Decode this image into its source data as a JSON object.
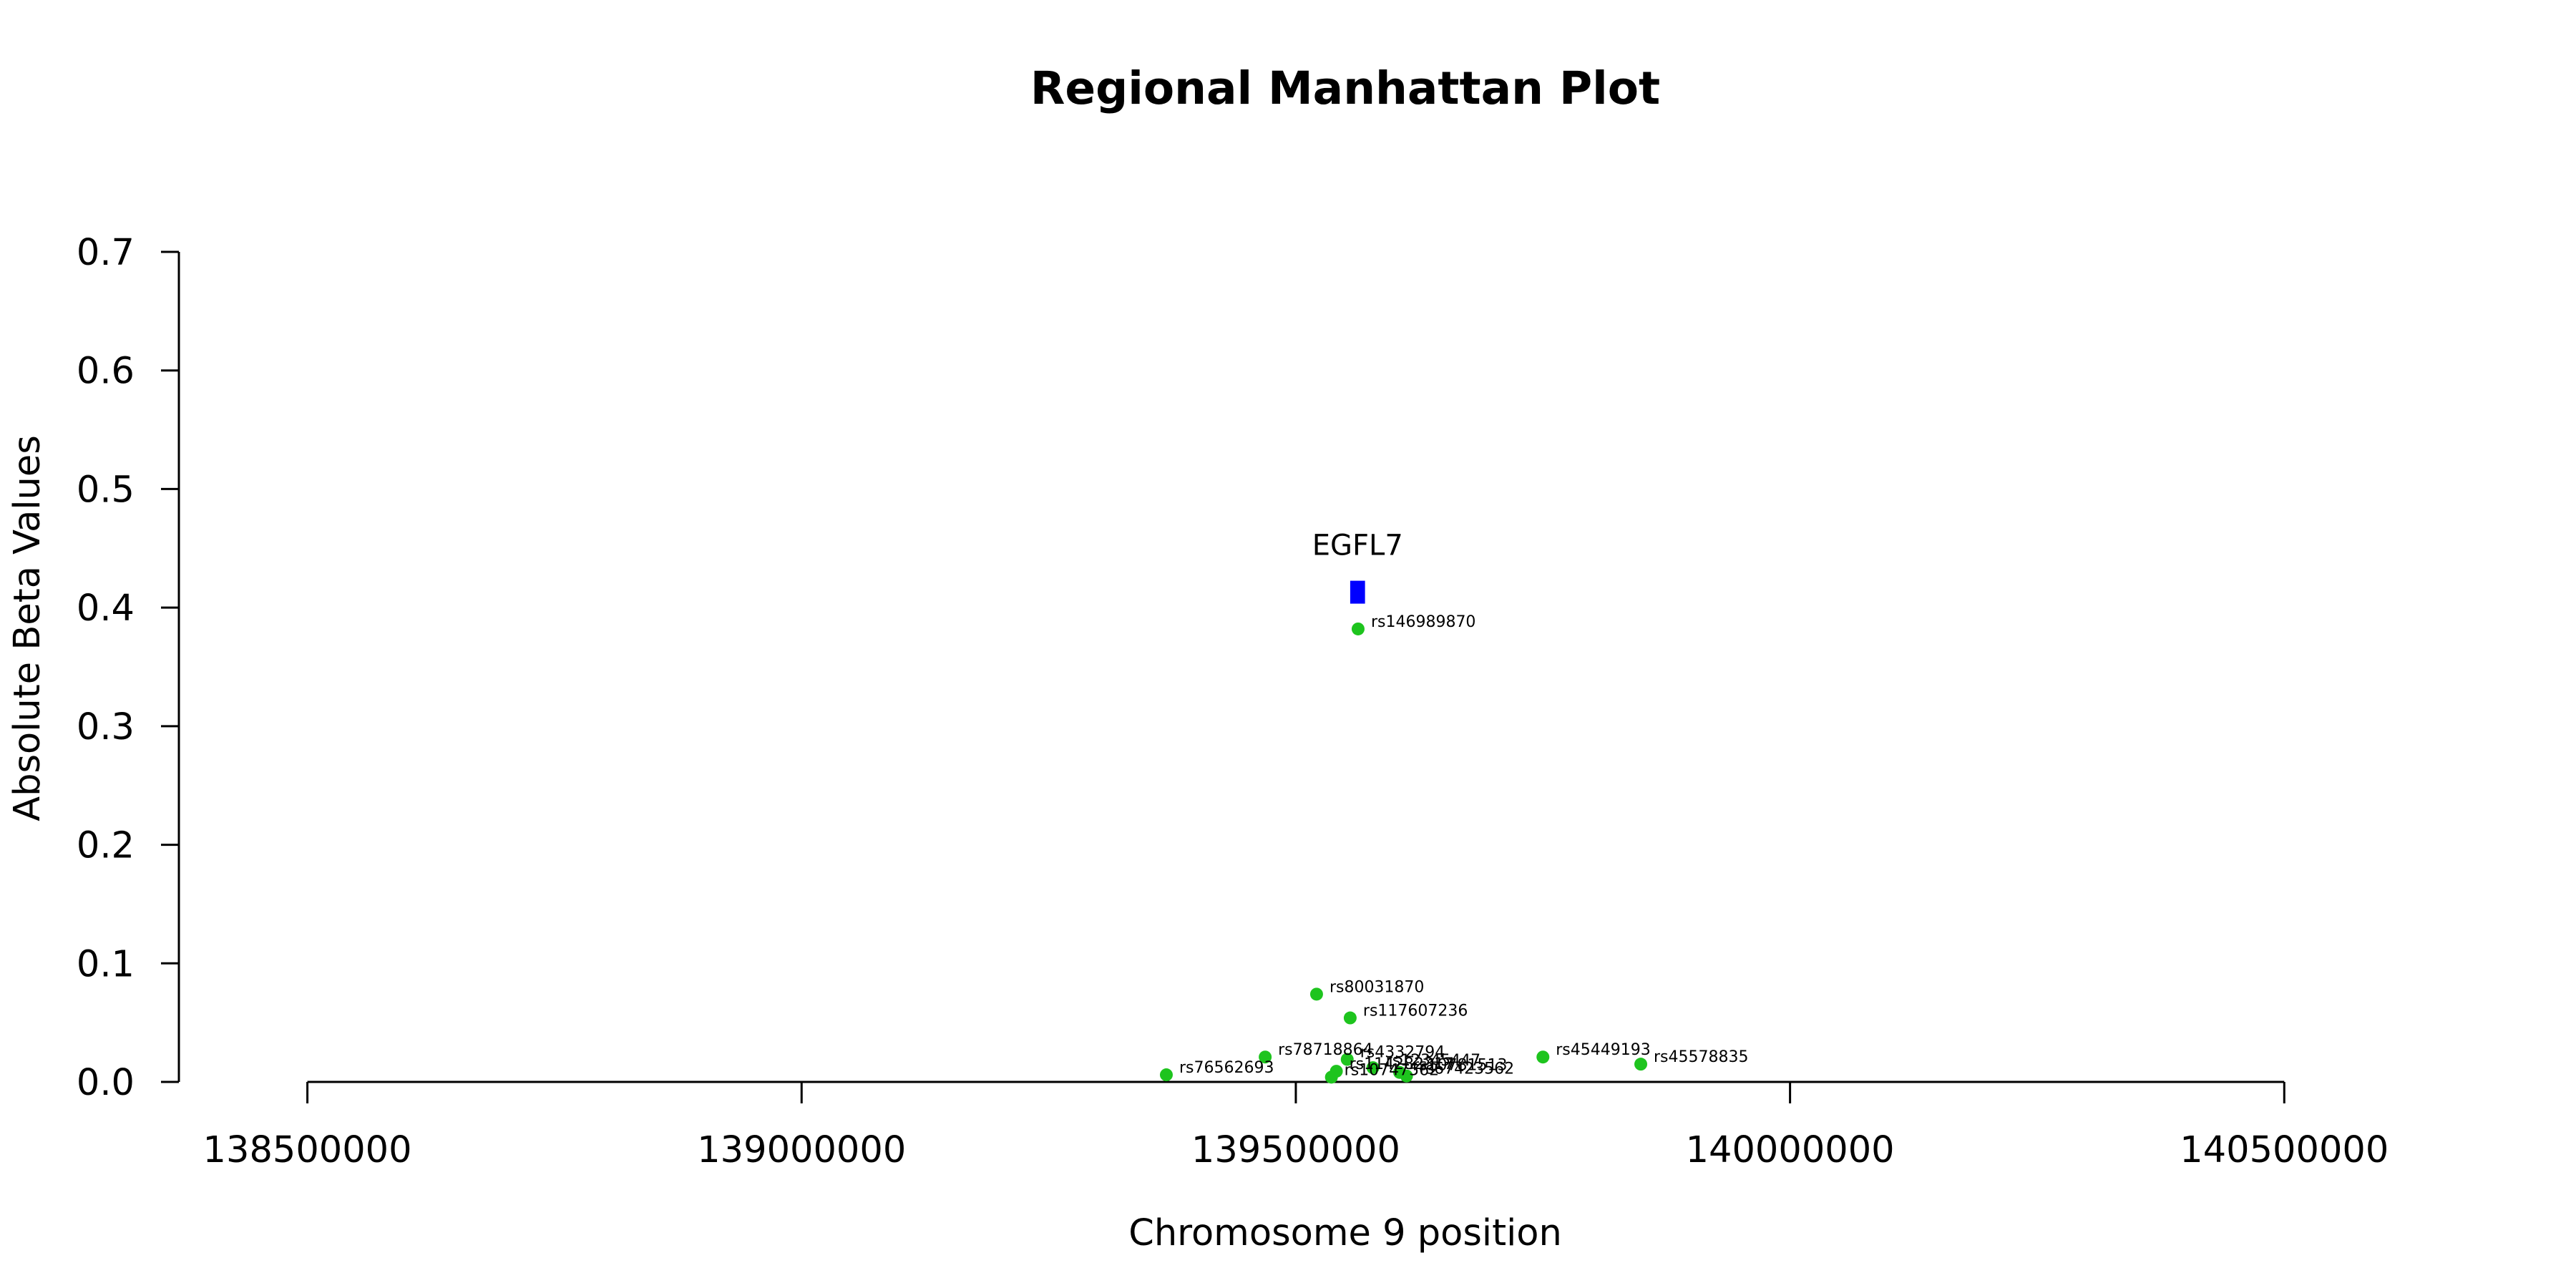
{
  "chart_data": {
    "type": "scatter",
    "title": "Regional Manhattan Plot",
    "xlabel": "Chromosome 9 position",
    "ylabel": "Absolute Beta Values",
    "xlim": [
      138370000,
      140730000
    ],
    "ylim": [
      0,
      0.7
    ],
    "x_ticks": [
      138500000,
      139000000,
      139500000,
      140000000,
      140500000
    ],
    "x_tick_labels": [
      "138500000",
      "139000000",
      "139500000",
      "140000000",
      "140500000"
    ],
    "y_ticks": [
      0.0,
      0.1,
      0.2,
      0.3,
      0.4,
      0.5,
      0.6,
      0.7
    ],
    "y_tick_labels": [
      "0.0",
      "0.1",
      "0.2",
      "0.3",
      "0.4",
      "0.5",
      "0.6",
      "0.7"
    ],
    "grid": false,
    "colors": {
      "snp": "#1ec41e",
      "gene": "#0000ff",
      "axis": "#000000"
    },
    "series": [
      {
        "points": [
          {
            "label": "rs146989870",
            "x": 139563000,
            "y": 0.382
          },
          {
            "label": "rs80031870",
            "x": 139521000,
            "y": 0.074
          },
          {
            "label": "rs117607236",
            "x": 139555000,
            "y": 0.054
          },
          {
            "label": "rs78718864",
            "x": 139469000,
            "y": 0.021
          },
          {
            "label": "rs4332794",
            "x": 139552000,
            "y": 0.019
          },
          {
            "label": "rs45449193",
            "x": 139750000,
            "y": 0.021
          },
          {
            "label": "rs45578835",
            "x": 139849000,
            "y": 0.015
          },
          {
            "label": "rs76562693",
            "x": 139369000,
            "y": 0.006
          },
          {
            "label": "rs12345447",
            "x": 139578000,
            "y": 0.012
          },
          {
            "label": "rs10781513",
            "x": 139605000,
            "y": 0.008
          },
          {
            "label": "rs67423562",
            "x": 139612000,
            "y": 0.005
          },
          {
            "label": "rs114282317",
            "x": 139541000,
            "y": 0.009
          },
          {
            "label": "rs10747562",
            "x": 139536000,
            "y": 0.004
          }
        ]
      }
    ],
    "gene": {
      "name": "EGFL7",
      "x_start": 139555000,
      "x_end": 139570000,
      "y": 0.413
    }
  }
}
